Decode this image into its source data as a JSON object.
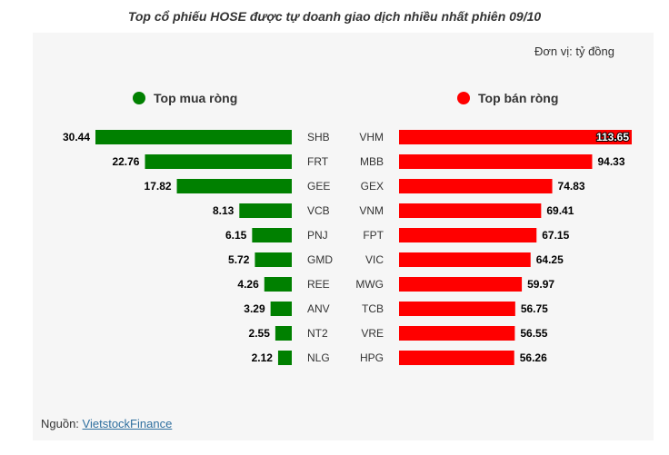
{
  "title": "Top cổ phiếu HOSE được tự doanh giao dịch nhiều nhất phiên 09/10",
  "unit_label": "Đơn vị: tỷ đồng",
  "source": {
    "prefix": "Nguồn: ",
    "link_text": "VietstockFinance"
  },
  "colors": {
    "buy": "#008000",
    "sell": "#ff0000",
    "panel_bg": "#f6f6f6"
  },
  "chart_data": {
    "type": "bar",
    "orientation": "horizontal",
    "series": [
      {
        "name": "Top mua ròng",
        "color": "#008000",
        "categories": [
          "SHB",
          "FRT",
          "GEE",
          "VCB",
          "PNJ",
          "GMD",
          "REE",
          "ANV",
          "NT2",
          "NLG"
        ],
        "values": [
          30.44,
          22.76,
          17.82,
          8.13,
          6.15,
          5.72,
          4.26,
          3.29,
          2.55,
          2.12
        ],
        "labels": [
          "30.44",
          "22.76",
          "17.82",
          "8.13",
          "6.15",
          "5.72",
          "4.26",
          "3.29",
          "2.55",
          "2.12"
        ]
      },
      {
        "name": "Top bán ròng",
        "color": "#ff0000",
        "categories": [
          "VHM",
          "MBB",
          "GEX",
          "VNM",
          "FPT",
          "VIC",
          "MWG",
          "TCB",
          "VRE",
          "HPG"
        ],
        "values": [
          113.65,
          94.33,
          74.83,
          69.41,
          67.15,
          64.25,
          59.97,
          56.75,
          56.55,
          56.26
        ],
        "labels": [
          "113.65",
          "94.33",
          "74.83",
          "69.41",
          "67.15",
          "64.25",
          "59.97",
          "56.75",
          "56.55",
          "56.26"
        ]
      }
    ],
    "legend_placement": "top",
    "grid": false
  }
}
